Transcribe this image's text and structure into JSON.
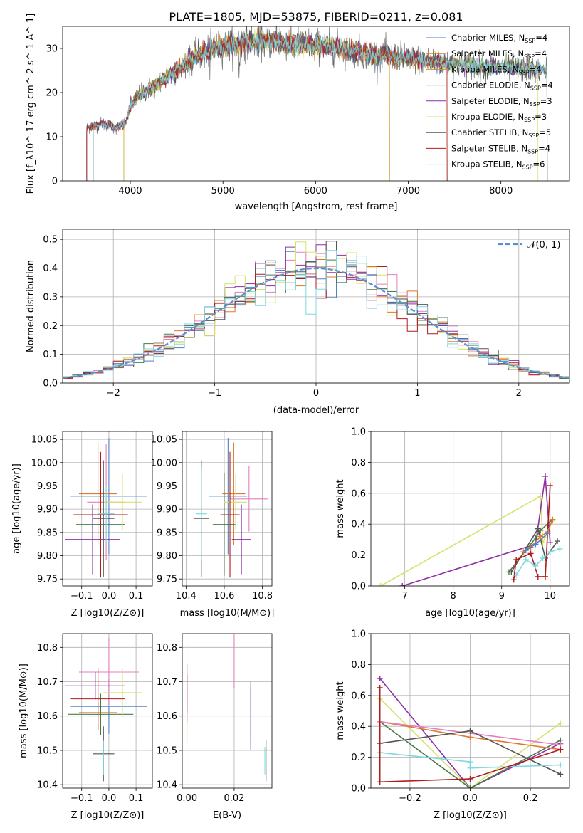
{
  "colors": {
    "chabrier_miles": "#4f83c7",
    "salpeter_miles": "#e0782e",
    "kroupa_miles": "#c99a1e",
    "chabrier_elodie": "#4a7a4a",
    "salpeter_elodie": "#8e2fa6",
    "kroupa_elodie": "#d3e36c",
    "chabrier_stelib": "#555555",
    "salpeter_stelib": "#b01c1c",
    "kroupa_stelib": "#7fd8e0",
    "pink": "#e37fbf",
    "normal": "#5b8fd1"
  },
  "chart_data": [
    {
      "name": "spectrum",
      "type": "line",
      "title": "PLATE=1805, MJD=53875, FIBERID=0211, z=0.081",
      "xlabel": "wavelength [Angstrom, rest frame]",
      "ylabel": "Flux [f_λ10^-17 erg cm^-2 s^-1 A^-1]",
      "xlim": [
        3270,
        8740
      ],
      "ylim": [
        0,
        35
      ],
      "xticks": [
        "4000",
        "5000",
        "6000",
        "7000",
        "8000"
      ],
      "xtick_values": [
        4000,
        5000,
        6000,
        7000,
        8000
      ],
      "yticks": [
        "0",
        "10",
        "20",
        "30"
      ],
      "ytick_values": [
        0,
        10,
        20,
        30
      ],
      "legend_position": "top-right",
      "legend": [
        {
          "base": "Chabrier MILES, N",
          "sub": "SSP",
          "tail": "=4"
        },
        {
          "base": "Salpeter MILES, N",
          "sub": "SSP",
          "tail": "=4"
        },
        {
          "base": "Kroupa MILES, N",
          "sub": "SSP",
          "tail": "=4"
        },
        {
          "base": "Chabrier ELODIE, N",
          "sub": "SSP",
          "tail": "=4"
        },
        {
          "base": "Salpeter ELODIE, N",
          "sub": "SSP",
          "tail": "=3"
        },
        {
          "base": "Kroupa ELODIE, N",
          "sub": "SSP",
          "tail": "=3"
        },
        {
          "base": "Chabrier STELIB, N",
          "sub": "SSP",
          "tail": "=5"
        },
        {
          "base": "Salpeter STELIB, N",
          "sub": "SSP",
          "tail": "=4"
        },
        {
          "base": "Kroupa STELIB, N",
          "sub": "SSP",
          "tail": "=6"
        }
      ],
      "continuum": [
        [
          3530,
          12
        ],
        [
          3700,
          13
        ],
        [
          3850,
          12
        ],
        [
          3950,
          13
        ],
        [
          4000,
          17
        ],
        [
          4100,
          19.5
        ],
        [
          4300,
          22
        ],
        [
          4500,
          25
        ],
        [
          4700,
          28
        ],
        [
          4900,
          30
        ],
        [
          5100,
          31
        ],
        [
          5300,
          31.5
        ],
        [
          5500,
          31.5
        ],
        [
          5700,
          31
        ],
        [
          5900,
          31
        ],
        [
          6100,
          30.5
        ],
        [
          6300,
          30
        ],
        [
          6500,
          29
        ],
        [
          6700,
          28.5
        ],
        [
          6900,
          28
        ],
        [
          7100,
          27.5
        ],
        [
          7300,
          27
        ],
        [
          7500,
          26.5
        ],
        [
          7800,
          26
        ],
        [
          8100,
          25.5
        ],
        [
          8400,
          25
        ]
      ],
      "model_ranges": [
        [
          3530,
          7420
        ],
        [
          3530,
          7420
        ],
        [
          3930,
          6800
        ],
        [
          3600,
          8500
        ],
        [
          3600,
          8500
        ],
        [
          3940,
          8400
        ],
        [
          3530,
          8500
        ],
        [
          3530,
          7420
        ],
        [
          3600,
          8500
        ]
      ]
    },
    {
      "name": "residual-distribution",
      "type": "line",
      "xlabel": "(data-model)/error",
      "ylabel": "Normed distribution",
      "xlim": [
        -2.5,
        2.5
      ],
      "ylim": [
        0,
        0.535
      ],
      "xticks": [
        "−2",
        "−1",
        "0",
        "1",
        "2"
      ],
      "xtick_values": [
        -2,
        -1,
        0,
        1,
        2
      ],
      "yticks": [
        "0.0",
        "0.1",
        "0.2",
        "0.3",
        "0.4",
        "0.5"
      ],
      "ytick_values": [
        0,
        0.1,
        0.2,
        0.3,
        0.4,
        0.5
      ],
      "legend_position": "top-right",
      "legend": [
        "𝒩(0, 1)"
      ],
      "bin_width": 0.1
    },
    {
      "name": "age-vs-metallicity",
      "type": "scatter",
      "xlabel": "Z [log10(Z/Z⊙)]",
      "ylabel": "age [log10(age/yr)]",
      "xlim": [
        -0.17,
        0.16
      ],
      "ylim": [
        9.735,
        10.067
      ],
      "xticks": [
        "−0.1",
        "0.0",
        "0.1"
      ],
      "xtick_values": [
        -0.1,
        0,
        0.1
      ],
      "yticks": [
        "9.75",
        "9.80",
        "9.85",
        "9.90",
        "9.95",
        "10.00",
        "10.05"
      ],
      "ytick_values": [
        9.75,
        9.8,
        9.85,
        9.9,
        9.95,
        10.0,
        10.05
      ],
      "points": [
        {
          "series": "chabrier_miles",
          "x": 0.0,
          "xerr": 0.14,
          "y": 9.928,
          "yerr": 0.125
        },
        {
          "series": "salpeter_miles",
          "x": -0.04,
          "xerr": 0.07,
          "y": 9.933,
          "yerr": 0.11
        },
        {
          "series": "pink",
          "x": -0.01,
          "xerr": 0.07,
          "y": 9.915,
          "yerr": 0.125
        },
        {
          "series": "chabrier_elodie",
          "x": -0.03,
          "xerr": 0.09,
          "y": 9.867,
          "yerr": 0.11
        },
        {
          "series": "salpeter_elodie",
          "x": -0.06,
          "xerr": 0.1,
          "y": 9.835,
          "yerr": 0.075
        },
        {
          "series": "kroupa_elodie",
          "x": 0.05,
          "xerr": 0.07,
          "y": 9.915,
          "yerr": 0.06
        },
        {
          "series": "chabrier_stelib",
          "x": -0.02,
          "xerr": 0.04,
          "y": 9.88,
          "yerr": 0.125
        },
        {
          "series": "salpeter_stelib",
          "x": -0.03,
          "xerr": 0.1,
          "y": 9.888,
          "yerr": 0.135
        },
        {
          "series": "kroupa_stelib",
          "x": -0.01,
          "xerr": 0.03,
          "y": 9.89,
          "yerr": 0.06
        }
      ]
    },
    {
      "name": "age-vs-mass",
      "type": "scatter",
      "xlabel": "mass [log10(M/M⊙)]",
      "ylabel": "",
      "xlim": [
        10.38,
        10.85
      ],
      "ylim": [
        9.735,
        10.067
      ],
      "xticks": [
        "10.4",
        "10.6",
        "10.8"
      ],
      "xtick_values": [
        10.4,
        10.6,
        10.8
      ],
      "yticks": [
        "9.75",
        "9.80",
        "9.85",
        "9.90",
        "9.95",
        "10.00",
        "10.05"
      ],
      "ytick_values": [
        9.75,
        9.8,
        9.85,
        9.9,
        9.95,
        10.0,
        10.05
      ],
      "points": [
        {
          "series": "chabrier_miles",
          "x": 10.62,
          "xerr": 0.1,
          "y": 9.928,
          "yerr": 0.125
        },
        {
          "series": "salpeter_miles",
          "x": 10.65,
          "xerr": 0.06,
          "y": 9.933,
          "yerr": 0.11
        },
        {
          "series": "pink",
          "x": 10.73,
          "xerr": 0.1,
          "y": 9.922,
          "yerr": 0.07
        },
        {
          "series": "chabrier_elodie",
          "x": 10.6,
          "xerr": 0.06,
          "y": 9.867,
          "yerr": 0.11
        },
        {
          "series": "salpeter_elodie",
          "x": 10.69,
          "xerr": 0.05,
          "y": 9.835,
          "yerr": 0.075
        },
        {
          "series": "kroupa_elodie",
          "x": 10.66,
          "xerr": 0.06,
          "y": 9.915,
          "yerr": 0.06
        },
        {
          "series": "chabrier_stelib",
          "x": 10.48,
          "xerr": 0.04,
          "y": 9.88,
          "yerr": 0.125
        },
        {
          "series": "salpeter_stelib",
          "x": 10.63,
          "xerr": 0.05,
          "y": 9.888,
          "yerr": 0.135
        },
        {
          "series": "kroupa_stelib",
          "x": 10.48,
          "xerr": 0.03,
          "y": 9.89,
          "yerr": 0.1
        }
      ]
    },
    {
      "name": "mass-weight-vs-age",
      "type": "line",
      "xlabel": "age [log10(age/yr)]",
      "ylabel": "mass weight",
      "xlim": [
        6.3,
        10.4
      ],
      "ylim": [
        0,
        1
      ],
      "xticks": [
        "7",
        "8",
        "9",
        "10"
      ],
      "xtick_values": [
        7,
        8,
        9,
        10
      ],
      "yticks": [
        "0.0",
        "0.2",
        "0.4",
        "0.6",
        "0.8",
        "1.0"
      ],
      "ytick_values": [
        0,
        0.2,
        0.4,
        0.6,
        0.8,
        1.0
      ],
      "series": [
        {
          "series": "kroupa_elodie",
          "points": [
            [
              6.5,
              0.0
            ],
            [
              9.8,
              0.58
            ],
            [
              9.85,
              0.28
            ],
            [
              9.95,
              0.35
            ],
            [
              10.05,
              0.42
            ]
          ]
        },
        {
          "series": "salpeter_elodie",
          "points": [
            [
              6.95,
              0.0
            ],
            [
              9.7,
              0.27
            ],
            [
              9.9,
              0.71
            ],
            [
              10.0,
              0.28
            ]
          ]
        },
        {
          "series": "chabrier_elodie",
          "points": [
            [
              9.15,
              0.09
            ],
            [
              9.7,
              0.31
            ],
            [
              9.8,
              0.36
            ],
            [
              10.05,
              0.43
            ]
          ]
        },
        {
          "series": "chabrier_stelib",
          "points": [
            [
              9.2,
              0.09
            ],
            [
              9.75,
              0.37
            ],
            [
              9.9,
              0.18
            ],
            [
              10.15,
              0.29
            ]
          ]
        },
        {
          "series": "salpeter_stelib",
          "points": [
            [
              9.25,
              0.04
            ],
            [
              9.3,
              0.17
            ],
            [
              9.6,
              0.21
            ],
            [
              9.75,
              0.06
            ],
            [
              9.9,
              0.06
            ],
            [
              10.0,
              0.65
            ]
          ]
        },
        {
          "series": "salpeter_miles",
          "points": [
            [
              9.45,
              0.22
            ],
            [
              9.6,
              0.25
            ],
            [
              9.8,
              0.32
            ],
            [
              9.95,
              0.35
            ],
            [
              10.05,
              0.43
            ]
          ]
        },
        {
          "series": "kroupa_stelib",
          "points": [
            [
              9.3,
              0.07
            ],
            [
              9.5,
              0.17
            ],
            [
              9.7,
              0.13
            ],
            [
              9.85,
              0.18
            ],
            [
              10.0,
              0.22
            ],
            [
              10.2,
              0.24
            ]
          ]
        },
        {
          "series": "chabrier_miles",
          "points": [
            [
              9.5,
              0.23
            ],
            [
              9.7,
              0.27
            ],
            [
              9.95,
              0.34
            ]
          ]
        }
      ]
    },
    {
      "name": "mass-vs-metallicity",
      "type": "scatter",
      "xlabel": "Z [log10(Z/Z⊙)]",
      "ylabel": "mass [log10(M/M⊙)]",
      "xlim": [
        -0.17,
        0.16
      ],
      "ylim": [
        10.39,
        10.84
      ],
      "xticks": [
        "−0.1",
        "0.0",
        "0.1"
      ],
      "xtick_values": [
        -0.1,
        0,
        0.1
      ],
      "yticks": [
        "10.4",
        "10.5",
        "10.6",
        "10.7",
        "10.8"
      ],
      "ytick_values": [
        10.4,
        10.5,
        10.6,
        10.7,
        10.8
      ],
      "points": [
        {
          "series": "chabrier_miles",
          "x": 0.0,
          "xerr": 0.14,
          "y": 10.628,
          "yerr": 0.08
        },
        {
          "series": "salpeter_miles",
          "x": -0.04,
          "xerr": 0.07,
          "y": 10.61,
          "yerr": 0.05
        },
        {
          "series": "pink",
          "x": 0.0,
          "xerr": 0.11,
          "y": 10.728,
          "yerr": 0.1
        },
        {
          "series": "chabrier_elodie",
          "x": -0.03,
          "xerr": 0.12,
          "y": 10.605,
          "yerr": 0.06
        },
        {
          "series": "salpeter_elodie",
          "x": -0.05,
          "xerr": 0.11,
          "y": 10.688,
          "yerr": 0.04
        },
        {
          "series": "kroupa_elodie",
          "x": 0.05,
          "xerr": 0.07,
          "y": 10.668,
          "yerr": 0.07
        },
        {
          "series": "chabrier_stelib",
          "x": -0.02,
          "xerr": 0.04,
          "y": 10.49,
          "yerr": 0.08
        },
        {
          "series": "salpeter_stelib",
          "x": -0.04,
          "xerr": 0.1,
          "y": 10.65,
          "yerr": 0.09
        },
        {
          "series": "kroupa_stelib",
          "x": -0.02,
          "xerr": 0.05,
          "y": 10.478,
          "yerr": 0.05
        }
      ]
    },
    {
      "name": "mass-vs-extinction",
      "type": "scatter",
      "xlabel": "E(B-V)",
      "ylabel": "",
      "xlim": [
        -0.002,
        0.036
      ],
      "ylim": [
        10.39,
        10.84
      ],
      "xticks": [
        "0.00",
        "0.02"
      ],
      "xtick_values": [
        0.0,
        0.02
      ],
      "yticks": [
        "10.4",
        "10.5",
        "10.6",
        "10.7",
        "10.8"
      ],
      "ytick_values": [
        10.4,
        10.5,
        10.6,
        10.7,
        10.8
      ],
      "points": [
        {
          "series": "salpeter_elodie",
          "x": 0.0,
          "xerr": 0,
          "y": 10.68,
          "yerr": 0.07
        },
        {
          "series": "salpeter_stelib",
          "x": 0.0,
          "xerr": 0,
          "y": 10.65,
          "yerr": 0.07
        },
        {
          "series": "kroupa_elodie",
          "x": 0.0,
          "xerr": 0,
          "y": 10.56,
          "yerr": 0.04
        },
        {
          "series": "pink",
          "x": 0.02,
          "xerr": 0,
          "y": 10.76,
          "yerr": 0.08
        },
        {
          "series": "salpeter_miles",
          "x": 0.027,
          "xerr": 0,
          "y": 10.6,
          "yerr": 0.08
        },
        {
          "series": "chabrier_miles",
          "x": 0.027,
          "xerr": 0,
          "y": 10.6,
          "yerr": 0.1
        },
        {
          "series": "kroupa_stelib",
          "x": 0.033,
          "xerr": 0,
          "y": 10.47,
          "yerr": 0.04
        },
        {
          "series": "chabrier_stelib",
          "x": 0.0335,
          "xerr": 0,
          "y": 10.47,
          "yerr": 0.06
        }
      ]
    },
    {
      "name": "mass-weight-vs-metallicity",
      "type": "line",
      "xlabel": "Z [log10(Z/Z⊙)]",
      "ylabel": "mass weight",
      "xlim": [
        -0.33,
        0.33
      ],
      "ylim": [
        0,
        1
      ],
      "xticks": [
        "−0.2",
        "0.0",
        "0.2"
      ],
      "xtick_values": [
        -0.2,
        0,
        0.2
      ],
      "yticks": [
        "0.0",
        "0.2",
        "0.4",
        "0.6",
        "0.8",
        "1.0"
      ],
      "ytick_values": [
        0,
        0.2,
        0.4,
        0.6,
        0.8,
        1.0
      ],
      "series": [
        {
          "series": "salpeter_elodie",
          "points": [
            [
              -0.3,
              0.71
            ],
            [
              0.0,
              0.0
            ],
            [
              0.3,
              0.29
            ]
          ]
        },
        {
          "series": "kroupa_elodie",
          "points": [
            [
              -0.3,
              0.58
            ],
            [
              0.0,
              0.0
            ],
            [
              0.3,
              0.42
            ]
          ]
        },
        {
          "series": "chabrier_elodie",
          "points": [
            [
              -0.3,
              0.43
            ],
            [
              0.0,
              0.0
            ],
            [
              0.3,
              0.31
            ]
          ]
        },
        {
          "series": "salpeter_miles",
          "points": [
            [
              -0.3,
              0.43
            ],
            [
              0.0,
              0.33
            ],
            [
              0.3,
              0.25
            ]
          ]
        },
        {
          "series": "pink",
          "points": [
            [
              -0.3,
              0.43
            ],
            [
              0.3,
              0.28
            ]
          ]
        },
        {
          "series": "chabrier_stelib",
          "points": [
            [
              -0.3,
              0.29
            ],
            [
              0.0,
              0.37
            ],
            [
              0.3,
              0.09
            ]
          ]
        },
        {
          "series": "kroupa_stelib",
          "points": [
            [
              -0.3,
              0.23
            ],
            [
              0.0,
              0.17
            ],
            [
              0.0,
              0.13
            ],
            [
              0.3,
              0.15
            ]
          ]
        },
        {
          "series": "salpeter_stelib",
          "points": [
            [
              -0.3,
              0.65
            ],
            [
              -0.3,
              0.04
            ],
            [
              0.0,
              0.06
            ],
            [
              0.3,
              0.25
            ]
          ]
        }
      ]
    }
  ]
}
